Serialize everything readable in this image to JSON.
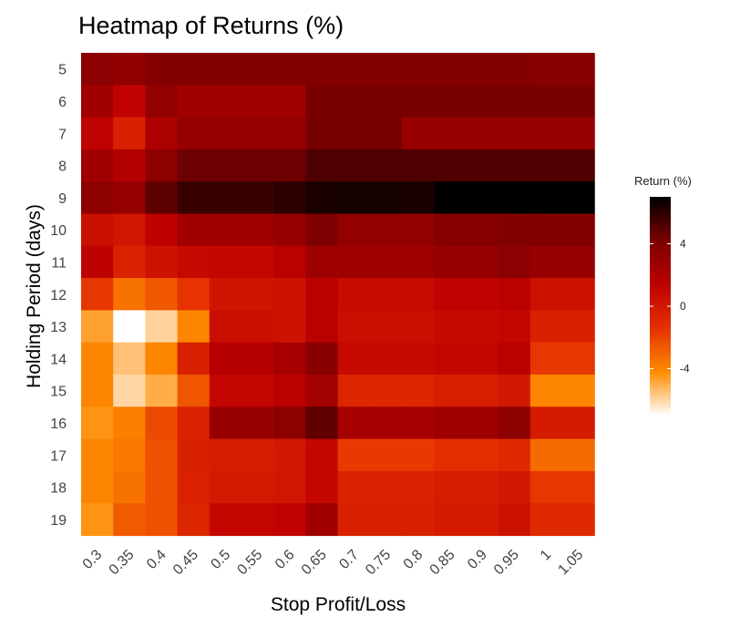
{
  "chart_data": {
    "type": "heatmap",
    "title": "Heatmap of Returns (%)",
    "xlabel": "Stop Profit/Loss",
    "ylabel": "Holding Period (days)",
    "x": [
      "0.3",
      "0.35",
      "0.4",
      "0.45",
      "0.5",
      "0.55",
      "0.6",
      "0.65",
      "0.7",
      "0.75",
      "0.8",
      "0.85",
      "0.9",
      "0.95",
      "1",
      "1.05"
    ],
    "y": [
      "5",
      "6",
      "7",
      "8",
      "9",
      "10",
      "11",
      "12",
      "13",
      "14",
      "15",
      "16",
      "17",
      "18",
      "19"
    ],
    "values": [
      [
        3.5,
        3.3,
        3.8,
        3.8,
        3.8,
        3.8,
        3.8,
        3.8,
        3.8,
        3.8,
        3.8,
        3.8,
        3.8,
        3.8,
        3.6,
        3.6
      ],
      [
        2.6,
        1.2,
        3.2,
        2.6,
        2.6,
        2.6,
        2.6,
        4.2,
        4.2,
        4.2,
        4.2,
        4.2,
        4.2,
        4.2,
        4.2,
        4.2
      ],
      [
        1.2,
        -0.5,
        2.1,
        3.0,
        3.0,
        3.0,
        3.0,
        4.3,
        4.3,
        4.3,
        2.9,
        2.9,
        2.9,
        2.9,
        2.9,
        2.9
      ],
      [
        2.6,
        1.8,
        3.4,
        4.5,
        4.5,
        4.5,
        4.5,
        5.2,
        5.2,
        5.2,
        5.2,
        5.2,
        5.2,
        5.2,
        5.2,
        5.2
      ],
      [
        3.4,
        3.0,
        4.9,
        5.7,
        5.7,
        5.7,
        6.0,
        6.4,
        6.5,
        6.5,
        6.4,
        7.0,
        7.0,
        7.0,
        7.0,
        7.0
      ],
      [
        0.5,
        0.1,
        1.3,
        2.6,
        2.6,
        2.6,
        3.0,
        4.0,
        3.2,
        3.2,
        3.2,
        3.7,
        3.7,
        3.9,
        3.9,
        3.9
      ],
      [
        1.3,
        -0.6,
        0.3,
        0.9,
        1.0,
        1.0,
        1.5,
        2.7,
        2.7,
        2.7,
        2.7,
        3.0,
        3.0,
        3.5,
        3.0,
        3.0
      ],
      [
        -1.6,
        -3.4,
        -2.6,
        -1.5,
        0.2,
        0.2,
        0.4,
        1.5,
        0.7,
        0.7,
        0.7,
        1.2,
        1.2,
        1.5,
        0.4,
        0.4
      ],
      [
        -4.7,
        -7.0,
        -5.9,
        -4.0,
        0.5,
        0.5,
        0.3,
        1.5,
        0.5,
        0.5,
        0.5,
        0.8,
        0.8,
        1.0,
        -0.5,
        -0.5
      ],
      [
        -4.0,
        -5.5,
        -4.0,
        -0.5,
        1.7,
        1.7,
        2.3,
        3.6,
        0.8,
        0.8,
        0.8,
        1.0,
        1.0,
        1.5,
        -1.6,
        -1.6
      ],
      [
        -4.0,
        -6.0,
        -5.0,
        -2.6,
        1.0,
        1.0,
        1.5,
        2.5,
        -0.8,
        -0.8,
        -0.8,
        -0.4,
        -0.4,
        0.0,
        -4.0,
        -4.0
      ],
      [
        -4.4,
        -3.8,
        -2.2,
        -0.6,
        2.9,
        2.9,
        3.4,
        4.8,
        2.3,
        2.3,
        2.3,
        2.7,
        2.7,
        3.4,
        -0.2,
        -0.2
      ],
      [
        -4.0,
        -3.6,
        -2.4,
        -0.5,
        -0.3,
        -0.3,
        0.0,
        1.0,
        -1.7,
        -1.7,
        -1.7,
        -1.3,
        -1.3,
        -1.0,
        -3.2,
        -3.2
      ],
      [
        -4.0,
        -3.4,
        -2.4,
        -0.6,
        -0.1,
        -0.1,
        0.1,
        1.0,
        -0.6,
        -0.6,
        -0.6,
        -0.3,
        -0.3,
        0.0,
        -1.6,
        -1.6
      ],
      [
        -4.4,
        -2.7,
        -2.4,
        -0.8,
        1.0,
        1.0,
        1.2,
        2.6,
        -0.5,
        -0.5,
        -0.5,
        -0.2,
        -0.2,
        0.4,
        -1.0,
        -1.0
      ]
    ],
    "colorbar": {
      "title": "Return (%)",
      "ticks": [
        4,
        0,
        -4
      ],
      "range": [
        -7,
        7
      ],
      "colors": [
        "#ffffff",
        "#ff8c00",
        "#e53000",
        "#bd0000",
        "#7a0000",
        "#000000"
      ]
    },
    "grid": false,
    "legend_position": "right"
  }
}
